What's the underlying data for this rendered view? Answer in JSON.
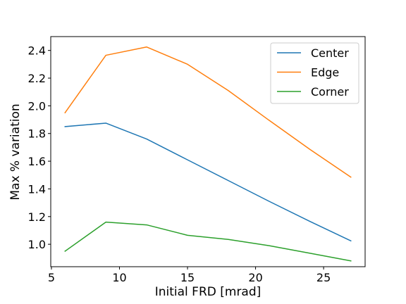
{
  "chart_data": {
    "type": "line",
    "title": "",
    "xlabel": "Initial FRD [mrad]",
    "ylabel": "Max % variation",
    "xlim": [
      4.95,
      28.05
    ],
    "ylim": [
      0.838,
      2.5
    ],
    "x_ticks": [
      5,
      10,
      15,
      20,
      25
    ],
    "y_ticks": [
      1.0,
      1.2,
      1.4,
      1.6,
      1.8,
      2.0,
      2.2,
      2.4
    ],
    "x_tick_labels": [
      "5",
      "10",
      "15",
      "20",
      "25"
    ],
    "y_tick_labels": [
      "1.0",
      "1.2",
      "1.4",
      "1.6",
      "1.8",
      "2.0",
      "2.2",
      "2.4"
    ],
    "grid": false,
    "legend_position": "top-right",
    "x": [
      6,
      9,
      12,
      15,
      18,
      21,
      24,
      27
    ],
    "series": [
      {
        "name": "Center",
        "color": "#1f77b4",
        "values": [
          1.85,
          1.875,
          1.76,
          1.61,
          1.46,
          1.31,
          1.165,
          1.025
        ]
      },
      {
        "name": "Edge",
        "color": "#ff7f0e",
        "values": [
          1.95,
          2.365,
          2.425,
          2.3,
          2.11,
          1.895,
          1.685,
          1.485
        ]
      },
      {
        "name": "Corner",
        "color": "#2ca02c",
        "values": [
          0.95,
          1.16,
          1.14,
          1.065,
          1.035,
          0.99,
          0.935,
          0.88
        ]
      }
    ]
  }
}
